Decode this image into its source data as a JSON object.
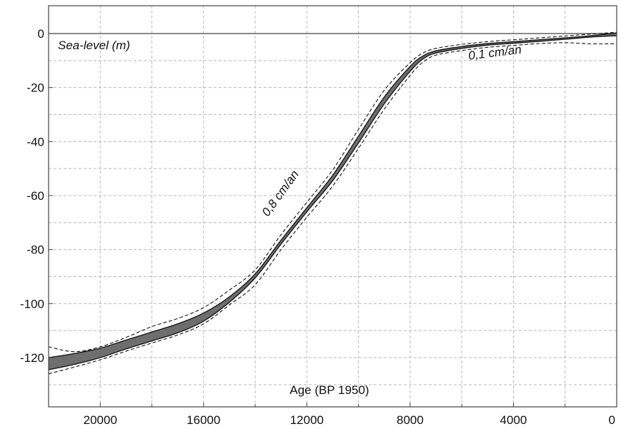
{
  "chart_data": {
    "type": "area",
    "title": "",
    "ylabel": "Sea-level (m)",
    "xlabel": "Age (BP 1950)",
    "xlim": [
      22000,
      0
    ],
    "ylim": [
      -135,
      10
    ],
    "x_reversed": true,
    "grid": true,
    "x_ticks": [
      20000,
      16000,
      12000,
      8000,
      4000,
      0
    ],
    "x_minor_gridlines": [
      22000,
      20000,
      18000,
      16000,
      14000,
      12000,
      10000,
      8000,
      6000,
      4000,
      2000,
      0
    ],
    "y_ticks": [
      0,
      -20,
      -40,
      -60,
      -80,
      -100,
      -120
    ],
    "series": [
      {
        "role": "band",
        "color": "#6e6e6e",
        "x": [
          22000,
          21000,
          20000,
          19000,
          18000,
          17000,
          16000,
          15000,
          14000,
          13000,
          12000,
          11000,
          10000,
          9000,
          8000,
          7500,
          7000,
          6000,
          5000,
          4000,
          3000,
          2000,
          1000,
          0
        ],
        "upper": [
          -120,
          -118.5,
          -116.5,
          -113.5,
          -110.5,
          -107.5,
          -103.5,
          -97.5,
          -89,
          -76.5,
          -64.5,
          -52.5,
          -38,
          -23.5,
          -12.2,
          -8.3,
          -6.4,
          -4.8,
          -3.7,
          -3,
          -2.3,
          -1.6,
          -0.8,
          0.2
        ],
        "lower": [
          -124.5,
          -122.5,
          -120,
          -116.8,
          -113.8,
          -110.8,
          -106.5,
          -99.5,
          -90.5,
          -78,
          -66,
          -54.5,
          -40.5,
          -26,
          -14,
          -9.4,
          -7.2,
          -5.5,
          -4.3,
          -3.6,
          -2.9,
          -2.1,
          -1.3,
          -0.8
        ]
      },
      {
        "role": "envelope-upper",
        "color": "#111111",
        "dashed": true,
        "x": [
          22000,
          21000,
          20000,
          19000,
          18000,
          17000,
          16000,
          15000,
          14000,
          13000,
          12000,
          11000,
          10000,
          9000,
          8000,
          7500,
          7000,
          6000,
          5000,
          4000,
          3000,
          2000,
          1000,
          0
        ],
        "values": [
          -116,
          -117.8,
          -116,
          -112.5,
          -108.5,
          -105.5,
          -101.5,
          -95,
          -87.5,
          -74.5,
          -62.5,
          -50.5,
          -35.5,
          -21,
          -10.8,
          -7.2,
          -5.5,
          -4,
          -3,
          -2.3,
          -1.6,
          -0.9,
          -0.2,
          0.5
        ]
      },
      {
        "role": "envelope-lower",
        "color": "#111111",
        "dashed": true,
        "x": [
          22000,
          21000,
          20000,
          19000,
          18000,
          17000,
          16000,
          15000,
          14000,
          13000,
          12000,
          11000,
          10000,
          9000,
          8000,
          7500,
          7000,
          6000,
          5000,
          4000,
          3000,
          2000,
          1000,
          0
        ],
        "values": [
          -126,
          -123.5,
          -120.8,
          -117.6,
          -114.6,
          -111.6,
          -107.5,
          -100.5,
          -93,
          -80,
          -68,
          -56.5,
          -42.5,
          -28,
          -15.5,
          -10.6,
          -8,
          -6.3,
          -5.1,
          -4.4,
          -3.7,
          -3.4,
          -3.8,
          -3.8
        ]
      }
    ],
    "annotations": [
      {
        "text": "0,8 cm/an",
        "x": 12900,
        "y": -60,
        "angle": -54
      },
      {
        "text": "0,1 cm/an",
        "x": 4700,
        "y": -8.5,
        "angle": -7
      }
    ],
    "colors": {
      "band_fill": "#6e6e6e",
      "band_edge": "#1a1a1a",
      "zero_line": "#444444"
    }
  }
}
